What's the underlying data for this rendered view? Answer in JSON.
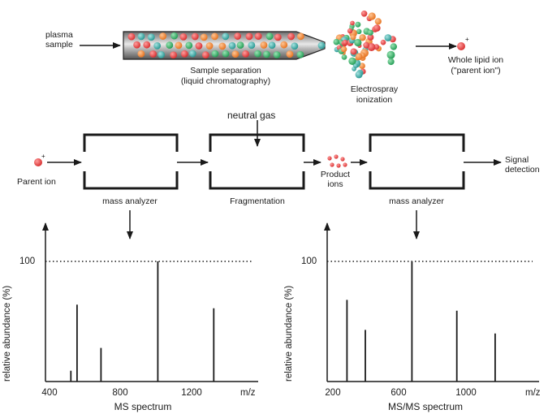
{
  "top": {
    "plasma_label": "plasma\nsample",
    "separation_label": "Sample separation",
    "separation_sub": "(liquid chromatography)",
    "electrospray_label": "Electrospray",
    "ionization_label": "ionization",
    "whole_ion_label": "Whole lipid ion",
    "parent_ion_quote": "(\"parent ion\")"
  },
  "middle": {
    "neutral_gas": "neutral gas",
    "parent_ion": "Parent ion",
    "mass_analyzer_1": "mass analyzer",
    "fragmentation": "Fragmentation",
    "product_ions": "Product\nions",
    "mass_analyzer_2": "mass analyzer",
    "signal_detection": "Signal\ndetection"
  },
  "colors": {
    "red": "#e23a3a",
    "green": "#27a85c",
    "teal": "#2fa6a1",
    "orange": "#f07f2a",
    "stroke": "#1a1a1a"
  },
  "chart_data": [
    {
      "type": "bar",
      "title": "MS spectrum",
      "xlabel": "m/z",
      "ylabel": "relative abundance (%)",
      "y_marker": "100",
      "xticks": [
        "400",
        "800",
        "1200"
      ],
      "xlim": [
        300,
        1750
      ],
      "ylim": [
        0,
        118
      ],
      "x": [
        520,
        555,
        690,
        1010,
        1325
      ],
      "values": [
        9,
        64,
        28,
        100,
        61
      ]
    },
    {
      "type": "bar",
      "title": "MS/MS spectrum",
      "xlabel": "m/z",
      "ylabel": "relative abundance (%)",
      "y_marker": "100",
      "xticks": [
        "200",
        "600",
        "1000"
      ],
      "xlim": [
        150,
        1350
      ],
      "ylim": [
        0,
        118
      ],
      "x": [
        285,
        395,
        675,
        945,
        1175
      ],
      "values": [
        68,
        43,
        100,
        59,
        40
      ]
    }
  ]
}
